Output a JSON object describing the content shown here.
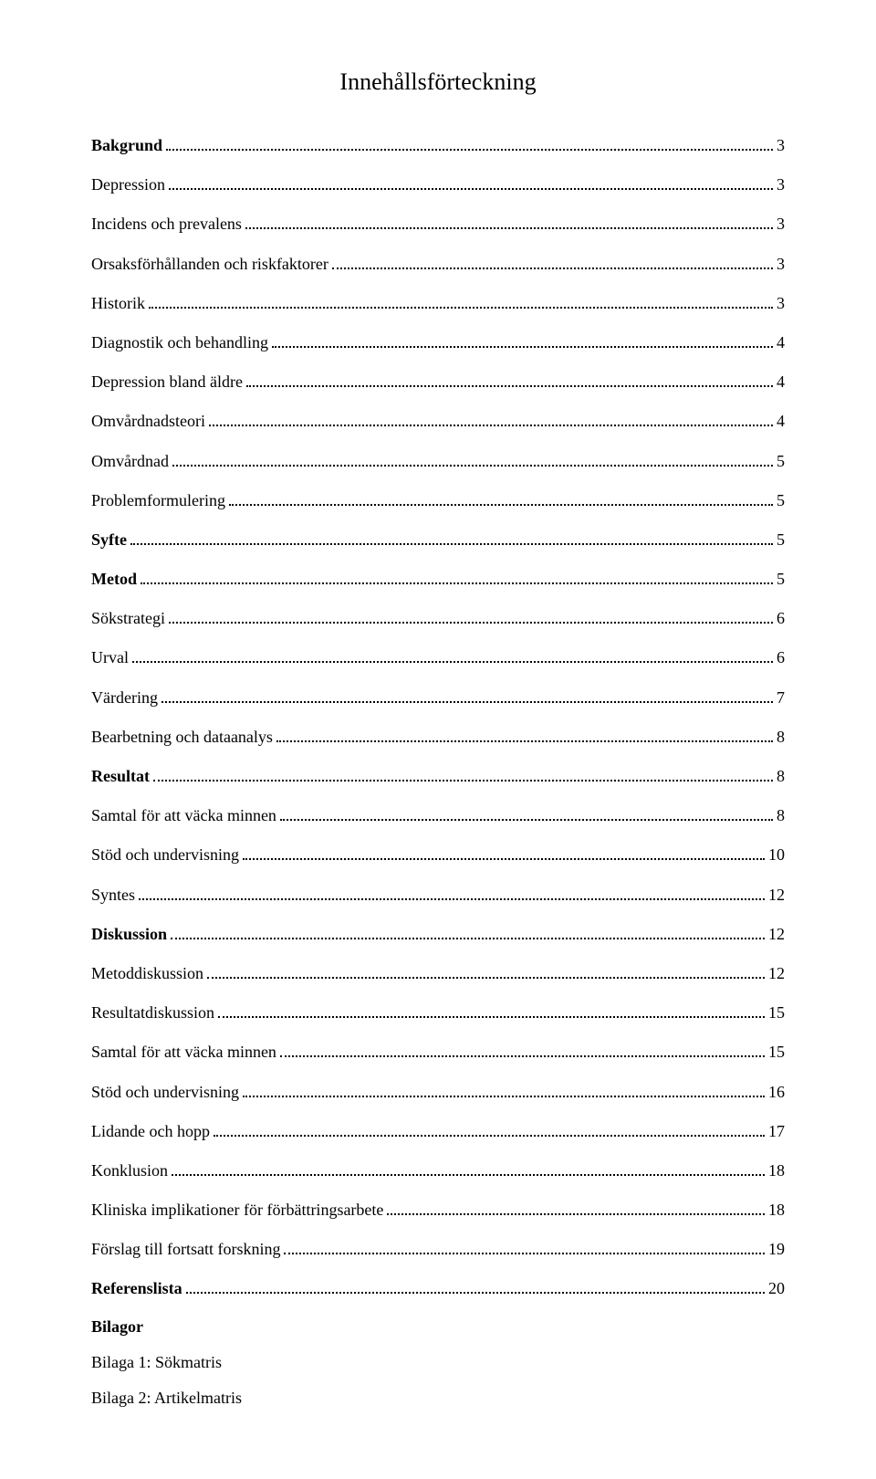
{
  "title": "Innehållsförteckning",
  "entries": [
    {
      "label": "Bakgrund",
      "page": "3",
      "bold": true
    },
    {
      "label": "Depression",
      "page": "3",
      "bold": false
    },
    {
      "label": "Incidens och prevalens",
      "page": "3",
      "bold": false
    },
    {
      "label": "Orsaksförhållanden och riskfaktorer",
      "page": "3",
      "bold": false
    },
    {
      "label": "Historik",
      "page": "3",
      "bold": false
    },
    {
      "label": "Diagnostik och behandling",
      "page": "4",
      "bold": false
    },
    {
      "label": "Depression bland äldre",
      "page": "4",
      "bold": false
    },
    {
      "label": "Omvårdnadsteori",
      "page": "4",
      "bold": false
    },
    {
      "label": "Omvårdnad",
      "page": "5",
      "bold": false
    },
    {
      "label": "Problemformulering",
      "page": "5",
      "bold": false
    },
    {
      "label": "Syfte",
      "page": "5",
      "bold": true
    },
    {
      "label": "Metod",
      "page": "5",
      "bold": true
    },
    {
      "label": "Sökstrategi",
      "page": "6",
      "bold": false
    },
    {
      "label": "Urval",
      "page": "6",
      "bold": false
    },
    {
      "label": "Värdering",
      "page": "7",
      "bold": false
    },
    {
      "label": "Bearbetning och dataanalys",
      "page": "8",
      "bold": false
    },
    {
      "label": "Resultat",
      "page": "8",
      "bold": true
    },
    {
      "label": "Samtal för att väcka minnen",
      "page": "8",
      "bold": false
    },
    {
      "label": "Stöd och undervisning",
      "page": "10",
      "bold": false
    },
    {
      "label": "Syntes",
      "page": "12",
      "bold": false
    },
    {
      "label": "Diskussion",
      "page": "12",
      "bold": true
    },
    {
      "label": "Metoddiskussion",
      "page": "12",
      "bold": false
    },
    {
      "label": "Resultatdiskussion",
      "page": "15",
      "bold": false
    },
    {
      "label": "Samtal för att väcka minnen",
      "page": "15",
      "bold": false
    },
    {
      "label": "Stöd och undervisning",
      "page": "16",
      "bold": false
    },
    {
      "label": "Lidande och hopp",
      "page": "17",
      "bold": false
    },
    {
      "label": "Konklusion",
      "page": "18",
      "bold": false
    },
    {
      "label": "Kliniska implikationer för förbättringsarbete",
      "page": "18",
      "bold": false
    },
    {
      "label": "Förslag till fortsatt forskning",
      "page": "19",
      "bold": false
    },
    {
      "label": "Referenslista",
      "page": "20",
      "bold": true
    },
    {
      "label": "Bilagor",
      "page": null,
      "bold": true
    },
    {
      "label": "Bilaga 1: Sökmatris",
      "page": null,
      "bold": false
    },
    {
      "label": "Bilaga 2: Artikelmatris",
      "page": null,
      "bold": false
    }
  ]
}
